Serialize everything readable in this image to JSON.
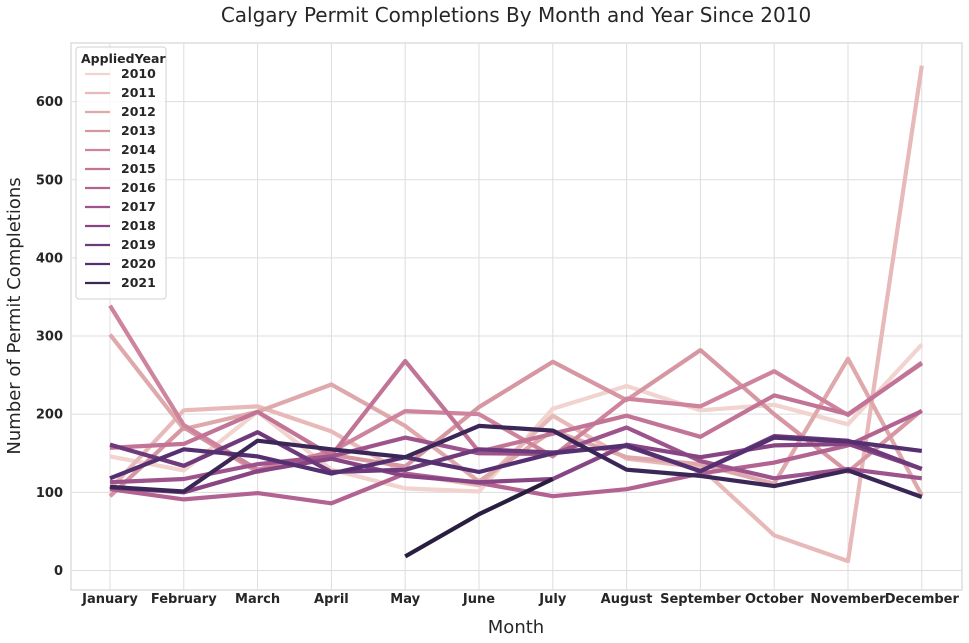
{
  "chart_data": {
    "type": "line",
    "title": "Calgary Permit Completions By Month and Year Since 2010",
    "xlabel": "Month",
    "ylabel": "Number of Permit Completions",
    "categories": [
      "January",
      "February",
      "March",
      "April",
      "May",
      "June",
      "July",
      "August",
      "September",
      "October",
      "November",
      "December"
    ],
    "yticks": [
      0,
      100,
      200,
      300,
      400,
      500,
      600
    ],
    "ylim": [
      -25,
      675
    ],
    "grid": true,
    "legend": {
      "title": "AppliedYear",
      "placement": "top-left"
    },
    "series": [
      {
        "name": "2010",
        "color": "#f1d3cf",
        "values": [
          146,
          128,
          203,
          129,
          105,
          101,
          207,
          236,
          205,
          212,
          187,
          289
        ]
      },
      {
        "name": "2011",
        "color": "#e7bab9",
        "values": [
          104,
          205,
          210,
          178,
          124,
          109,
          198,
          143,
          132,
          45,
          12,
          646
        ]
      },
      {
        "name": "2012",
        "color": "#dfa9ac",
        "values": [
          302,
          181,
          203,
          238,
          185,
          114,
          179,
          145,
          136,
          111,
          271,
          96
        ]
      },
      {
        "name": "2013",
        "color": "#d696a2",
        "values": [
          95,
          183,
          126,
          148,
          133,
          209,
          267,
          218,
          282,
          200,
          126,
          205
        ]
      },
      {
        "name": "2014",
        "color": "#cd849c",
        "values": [
          339,
          186,
          129,
          152,
          204,
          200,
          146,
          220,
          210,
          255,
          199,
          266
        ]
      },
      {
        "name": "2015",
        "color": "#c27497",
        "values": [
          157,
          162,
          203,
          147,
          268,
          152,
          175,
          198,
          171,
          224,
          200,
          265
        ]
      },
      {
        "name": "2016",
        "color": "#b26392",
        "values": [
          104,
          91,
          99,
          86,
          124,
          112,
          95,
          104,
          124,
          138,
          160,
          204
        ]
      },
      {
        "name": "2017",
        "color": "#9d538b",
        "values": [
          113,
          117,
          136,
          146,
          170,
          150,
          149,
          183,
          140,
          118,
          130,
          118
        ]
      },
      {
        "name": "2018",
        "color": "#884584",
        "values": [
          106,
          100,
          127,
          143,
          121,
          113,
          117,
          161,
          145,
          160,
          162,
          130
        ]
      },
      {
        "name": "2019",
        "color": "#6f3a7b",
        "values": [
          161,
          134,
          177,
          126,
          129,
          155,
          151,
          159,
          127,
          172,
          166,
          130
        ]
      },
      {
        "name": "2020",
        "color": "#553071",
        "values": [
          118,
          155,
          146,
          124,
          145,
          126,
          150,
          160,
          127,
          170,
          165,
          153
        ]
      },
      {
        "name": "2021",
        "color": "#3a2757",
        "values": [
          107,
          101,
          166,
          155,
          145,
          185,
          179,
          129,
          121,
          108,
          128,
          94
        ]
      },
      {
        "name": "",
        "color": "#2a1e40",
        "values": [
          null,
          null,
          null,
          null,
          18,
          72,
          117,
          null,
          null,
          null,
          null,
          null
        ]
      }
    ]
  }
}
